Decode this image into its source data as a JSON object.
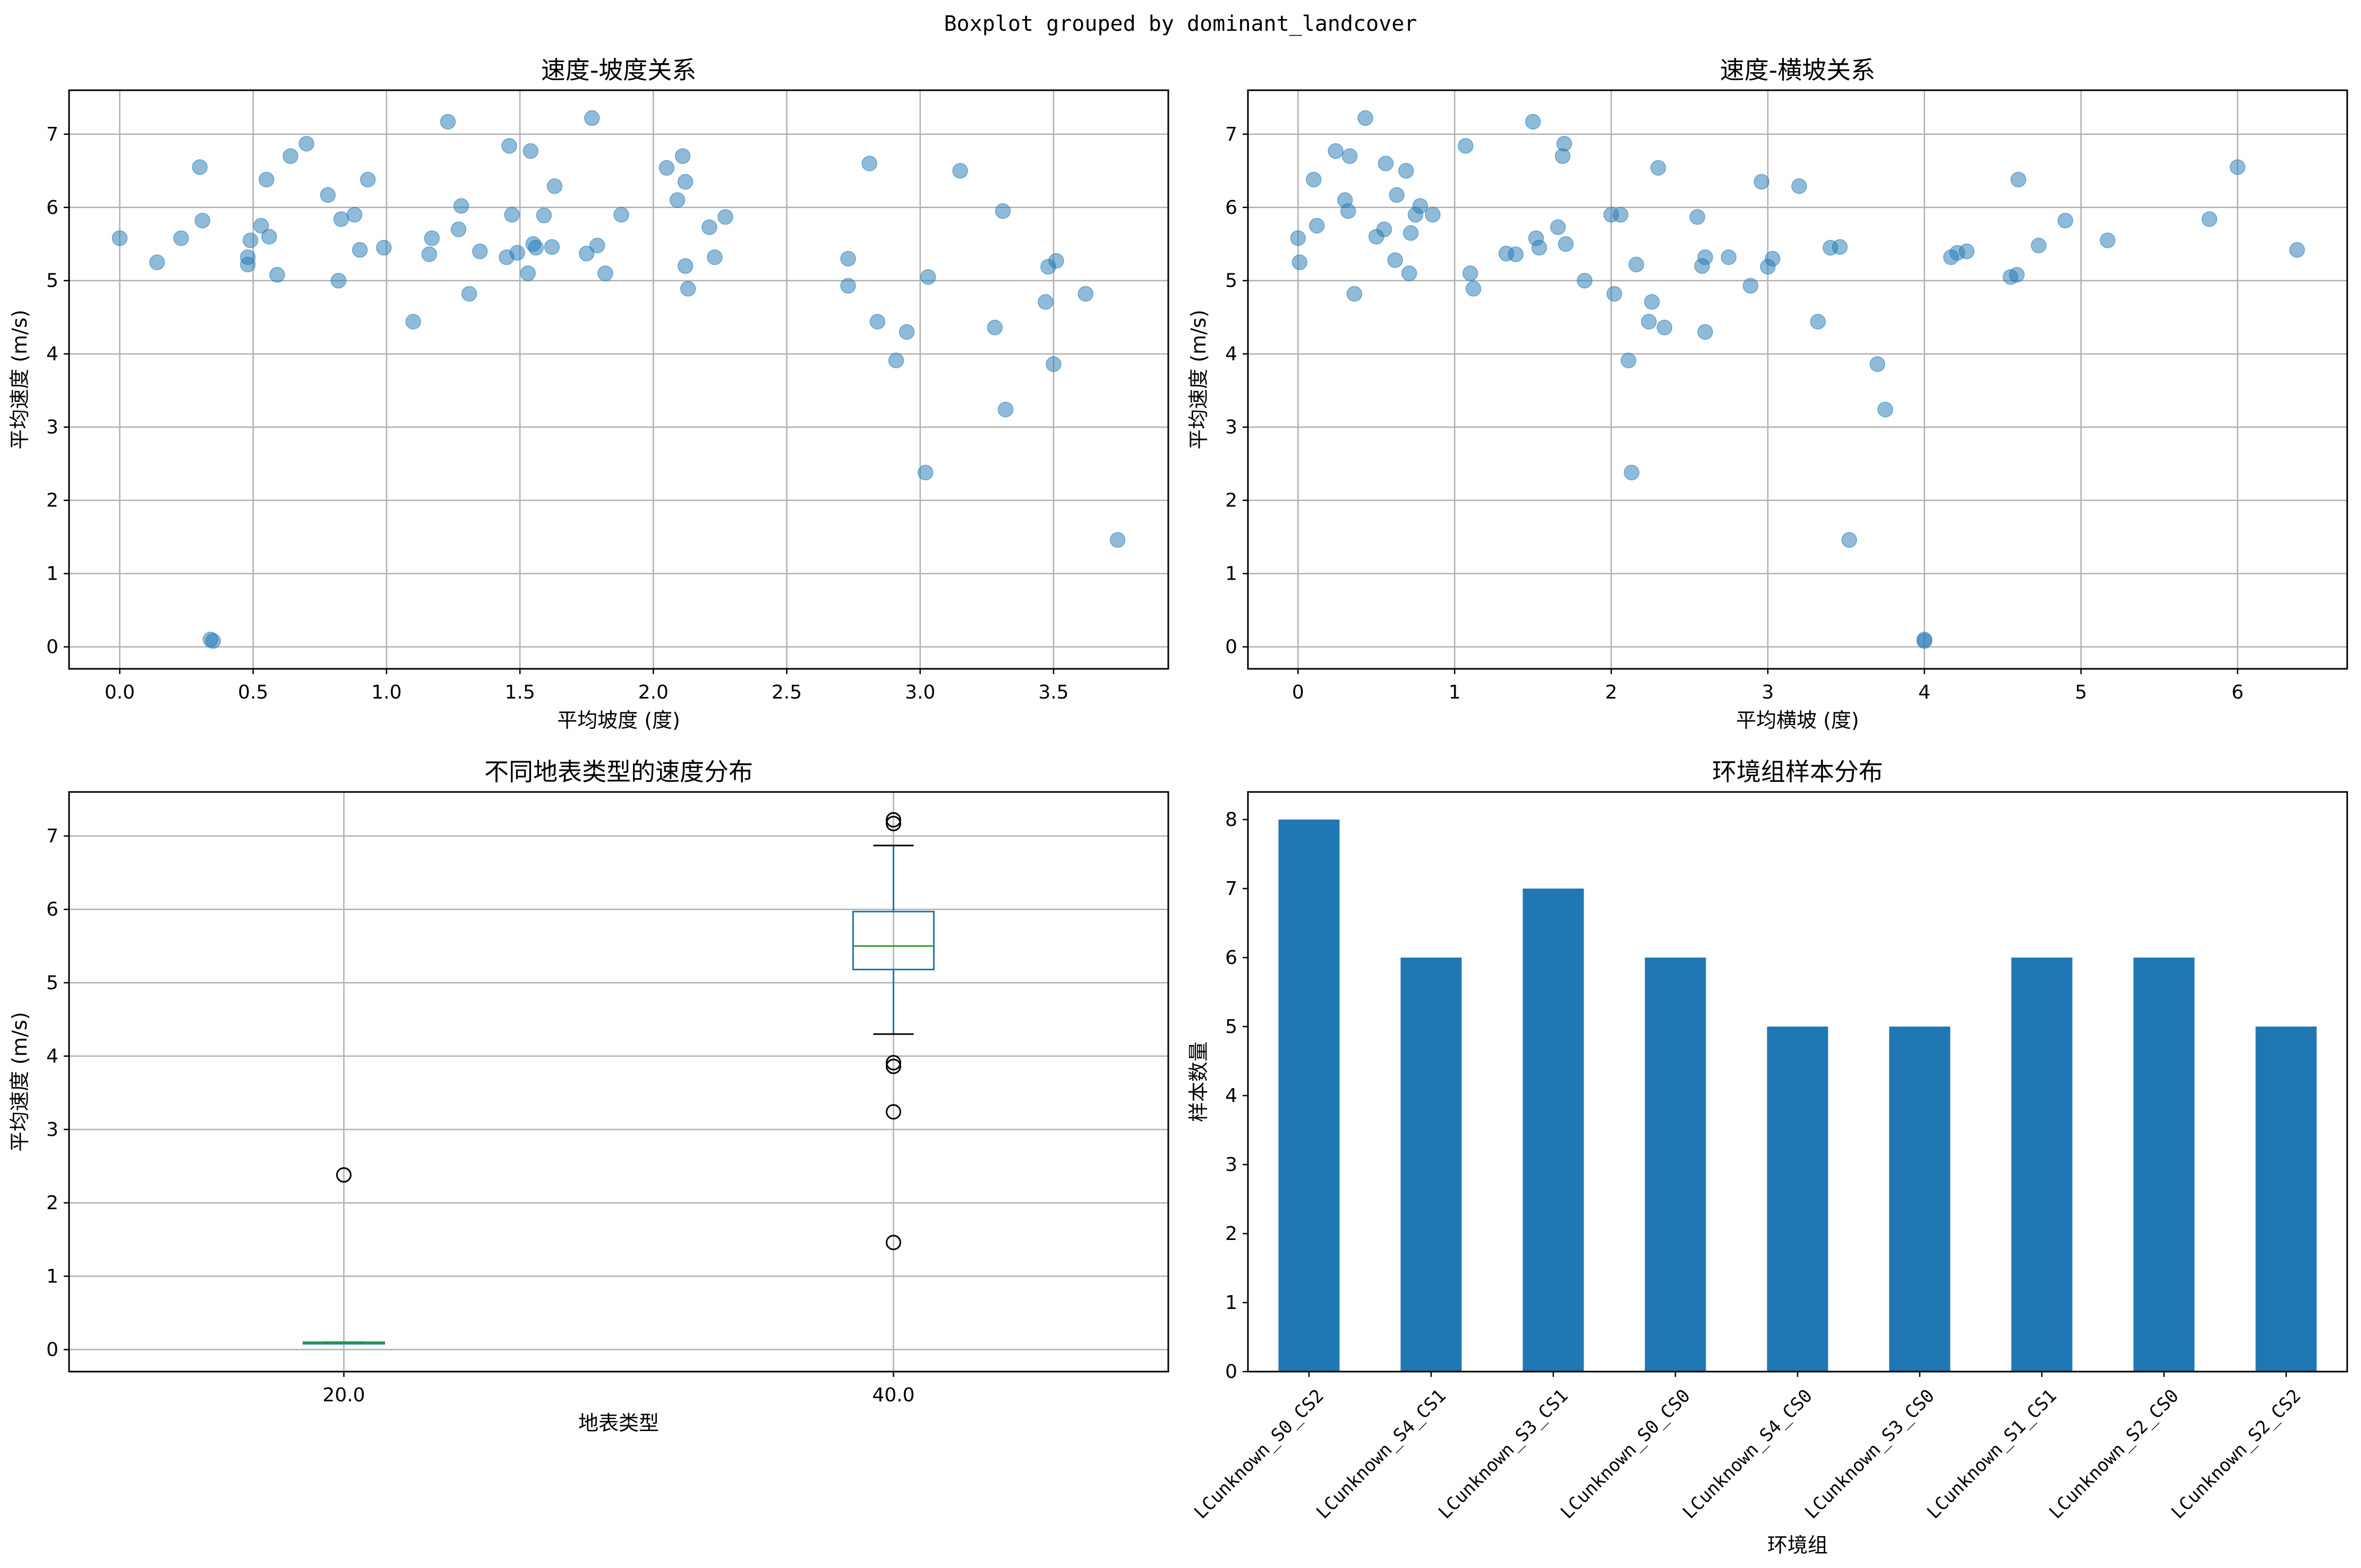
{
  "suptitle": "Boxplot grouped by dominant_landcover",
  "chart_data": [
    {
      "type": "scatter",
      "title": "速度-坡度关系",
      "xlabel": "平均坡度 (度)",
      "ylabel": "平均速度 (m/s)",
      "xlim": [
        -0.19,
        3.93
      ],
      "ylim": [
        -0.3,
        7.6
      ],
      "xticks": [
        "0.0",
        "0.5",
        "1.0",
        "1.5",
        "2.0",
        "2.5",
        "3.0",
        "3.5"
      ],
      "yticks": [
        "0",
        "1",
        "2",
        "3",
        "4",
        "5",
        "6",
        "7"
      ],
      "grid": true,
      "color": "#1f77b4",
      "x": [
        0.0,
        0.14,
        0.23,
        0.3,
        0.31,
        0.34,
        0.35,
        0.48,
        0.48,
        0.49,
        0.53,
        0.55,
        0.56,
        0.59,
        0.64,
        0.7,
        0.78,
        0.82,
        0.83,
        0.88,
        0.9,
        0.93,
        0.99,
        1.1,
        1.16,
        1.17,
        1.23,
        1.27,
        1.28,
        1.31,
        1.35,
        1.45,
        1.46,
        1.47,
        1.49,
        1.53,
        1.54,
        1.55,
        1.56,
        1.59,
        1.62,
        1.63,
        1.75,
        1.77,
        1.79,
        1.82,
        1.88,
        2.05,
        2.09,
        2.11,
        2.12,
        2.12,
        2.13,
        2.21,
        2.23,
        2.27,
        2.73,
        2.73,
        2.81,
        2.84,
        2.91,
        2.95,
        3.02,
        3.03,
        3.15,
        3.28,
        3.31,
        3.32,
        3.47,
        3.48,
        3.5,
        3.51,
        3.62,
        3.74
      ],
      "y": [
        5.58,
        5.25,
        5.58,
        6.55,
        5.82,
        0.1,
        0.08,
        5.22,
        5.32,
        5.55,
        5.75,
        6.38,
        5.6,
        5.08,
        6.7,
        6.87,
        6.17,
        5.0,
        5.84,
        5.9,
        5.42,
        6.38,
        5.45,
        4.44,
        5.36,
        5.58,
        7.17,
        5.7,
        6.02,
        4.82,
        5.4,
        5.32,
        6.84,
        5.9,
        5.38,
        5.1,
        6.77,
        5.5,
        5.45,
        5.89,
        5.46,
        6.29,
        5.37,
        7.22,
        5.48,
        5.1,
        5.9,
        6.54,
        6.1,
        6.7,
        6.35,
        5.2,
        4.89,
        5.73,
        5.32,
        5.87,
        4.93,
        5.3,
        6.6,
        4.44,
        3.91,
        4.3,
        2.38,
        5.05,
        6.5,
        4.36,
        5.95,
        3.24,
        4.71,
        5.19,
        3.86,
        5.27,
        4.82,
        1.46
      ]
    },
    {
      "type": "scatter",
      "title": "速度-横坡关系",
      "xlabel": "平均横坡 (度)",
      "ylabel": "平均速度 (m/s)",
      "xlim": [
        -0.32,
        6.7
      ],
      "ylim": [
        -0.3,
        7.6
      ],
      "xticks": [
        "0",
        "1",
        "2",
        "3",
        "4",
        "5",
        "6"
      ],
      "yticks": [
        "0",
        "1",
        "2",
        "3",
        "4",
        "5",
        "6",
        "7"
      ],
      "grid": true,
      "color": "#1f77b4",
      "x": [
        0.0,
        0.01,
        0.1,
        0.12,
        0.24,
        0.3,
        0.32,
        0.33,
        0.36,
        0.43,
        0.5,
        0.55,
        0.56,
        0.62,
        0.63,
        0.69,
        0.71,
        0.72,
        0.75,
        0.78,
        0.86,
        1.07,
        1.1,
        1.12,
        1.33,
        1.39,
        1.5,
        1.52,
        1.54,
        1.66,
        1.69,
        1.7,
        1.71,
        1.83,
        2.0,
        2.02,
        2.06,
        2.11,
        2.13,
        2.16,
        2.24,
        2.26,
        2.3,
        2.34,
        2.55,
        2.58,
        2.6,
        2.6,
        2.75,
        2.89,
        2.96,
        3.0,
        3.03,
        3.2,
        3.32,
        3.4,
        3.46,
        3.52,
        3.7,
        3.75,
        4.0,
        4.0,
        4.17,
        4.21,
        4.27,
        4.55,
        4.59,
        4.6,
        4.73,
        4.9,
        5.17,
        5.82,
        6.0,
        6.38
      ],
      "y": [
        5.58,
        5.25,
        6.38,
        5.75,
        6.77,
        6.1,
        5.95,
        6.7,
        4.82,
        7.22,
        5.6,
        5.7,
        6.6,
        5.28,
        6.17,
        6.5,
        5.1,
        5.65,
        5.9,
        6.02,
        5.9,
        6.84,
        5.1,
        4.89,
        5.37,
        5.36,
        7.17,
        5.58,
        5.45,
        5.73,
        6.7,
        6.87,
        5.5,
        5.0,
        5.9,
        4.82,
        5.9,
        3.91,
        2.38,
        5.22,
        4.44,
        4.71,
        6.54,
        4.36,
        5.87,
        5.2,
        4.3,
        5.32,
        5.32,
        4.93,
        6.35,
        5.19,
        5.3,
        6.29,
        4.44,
        5.45,
        5.46,
        1.46,
        3.86,
        3.24,
        0.1,
        0.08,
        5.32,
        5.38,
        5.4,
        5.05,
        5.08,
        6.38,
        5.48,
        5.82,
        5.55,
        5.84,
        6.55,
        5.42
      ]
    },
    {
      "type": "box",
      "title": "不同地表类型的速度分布",
      "xlabel": "地表类型",
      "ylabel": "平均速度 (m/s)",
      "ylim": [
        -0.3,
        7.6
      ],
      "yticks": [
        "0",
        "1",
        "2",
        "3",
        "4",
        "5",
        "6",
        "7"
      ],
      "grid": true,
      "categories": [
        "20.0",
        "40.0"
      ],
      "boxes": [
        {
          "whislo": 0.08,
          "q1": 0.08,
          "med": 0.09,
          "q3": 0.1,
          "whishi": 0.1,
          "fliers": [
            2.38
          ]
        },
        {
          "whislo": 4.3,
          "q1": 5.18,
          "med": 5.5,
          "q3": 5.97,
          "whishi": 6.87,
          "fliers": [
            7.17,
            7.22,
            3.91,
            3.86,
            3.24,
            1.46
          ]
        }
      ]
    },
    {
      "type": "bar",
      "title": "环境组样本分布",
      "xlabel": "环境组",
      "ylabel": "样本数量",
      "ylim": [
        0,
        8.4
      ],
      "yticks": [
        "0",
        "1",
        "2",
        "3",
        "4",
        "5",
        "6",
        "7",
        "8"
      ],
      "grid": false,
      "color": "#1f77b4",
      "categories": [
        "LCunknown_S0_CS2",
        "LCunknown_S4_CS1",
        "LCunknown_S3_CS1",
        "LCunknown_S0_CS0",
        "LCunknown_S4_CS0",
        "LCunknown_S3_CS0",
        "LCunknown_S1_CS1",
        "LCunknown_S2_CS0",
        "LCunknown_S2_CS2"
      ],
      "values": [
        8,
        6,
        7,
        6,
        5,
        5,
        6,
        6,
        5
      ]
    }
  ]
}
